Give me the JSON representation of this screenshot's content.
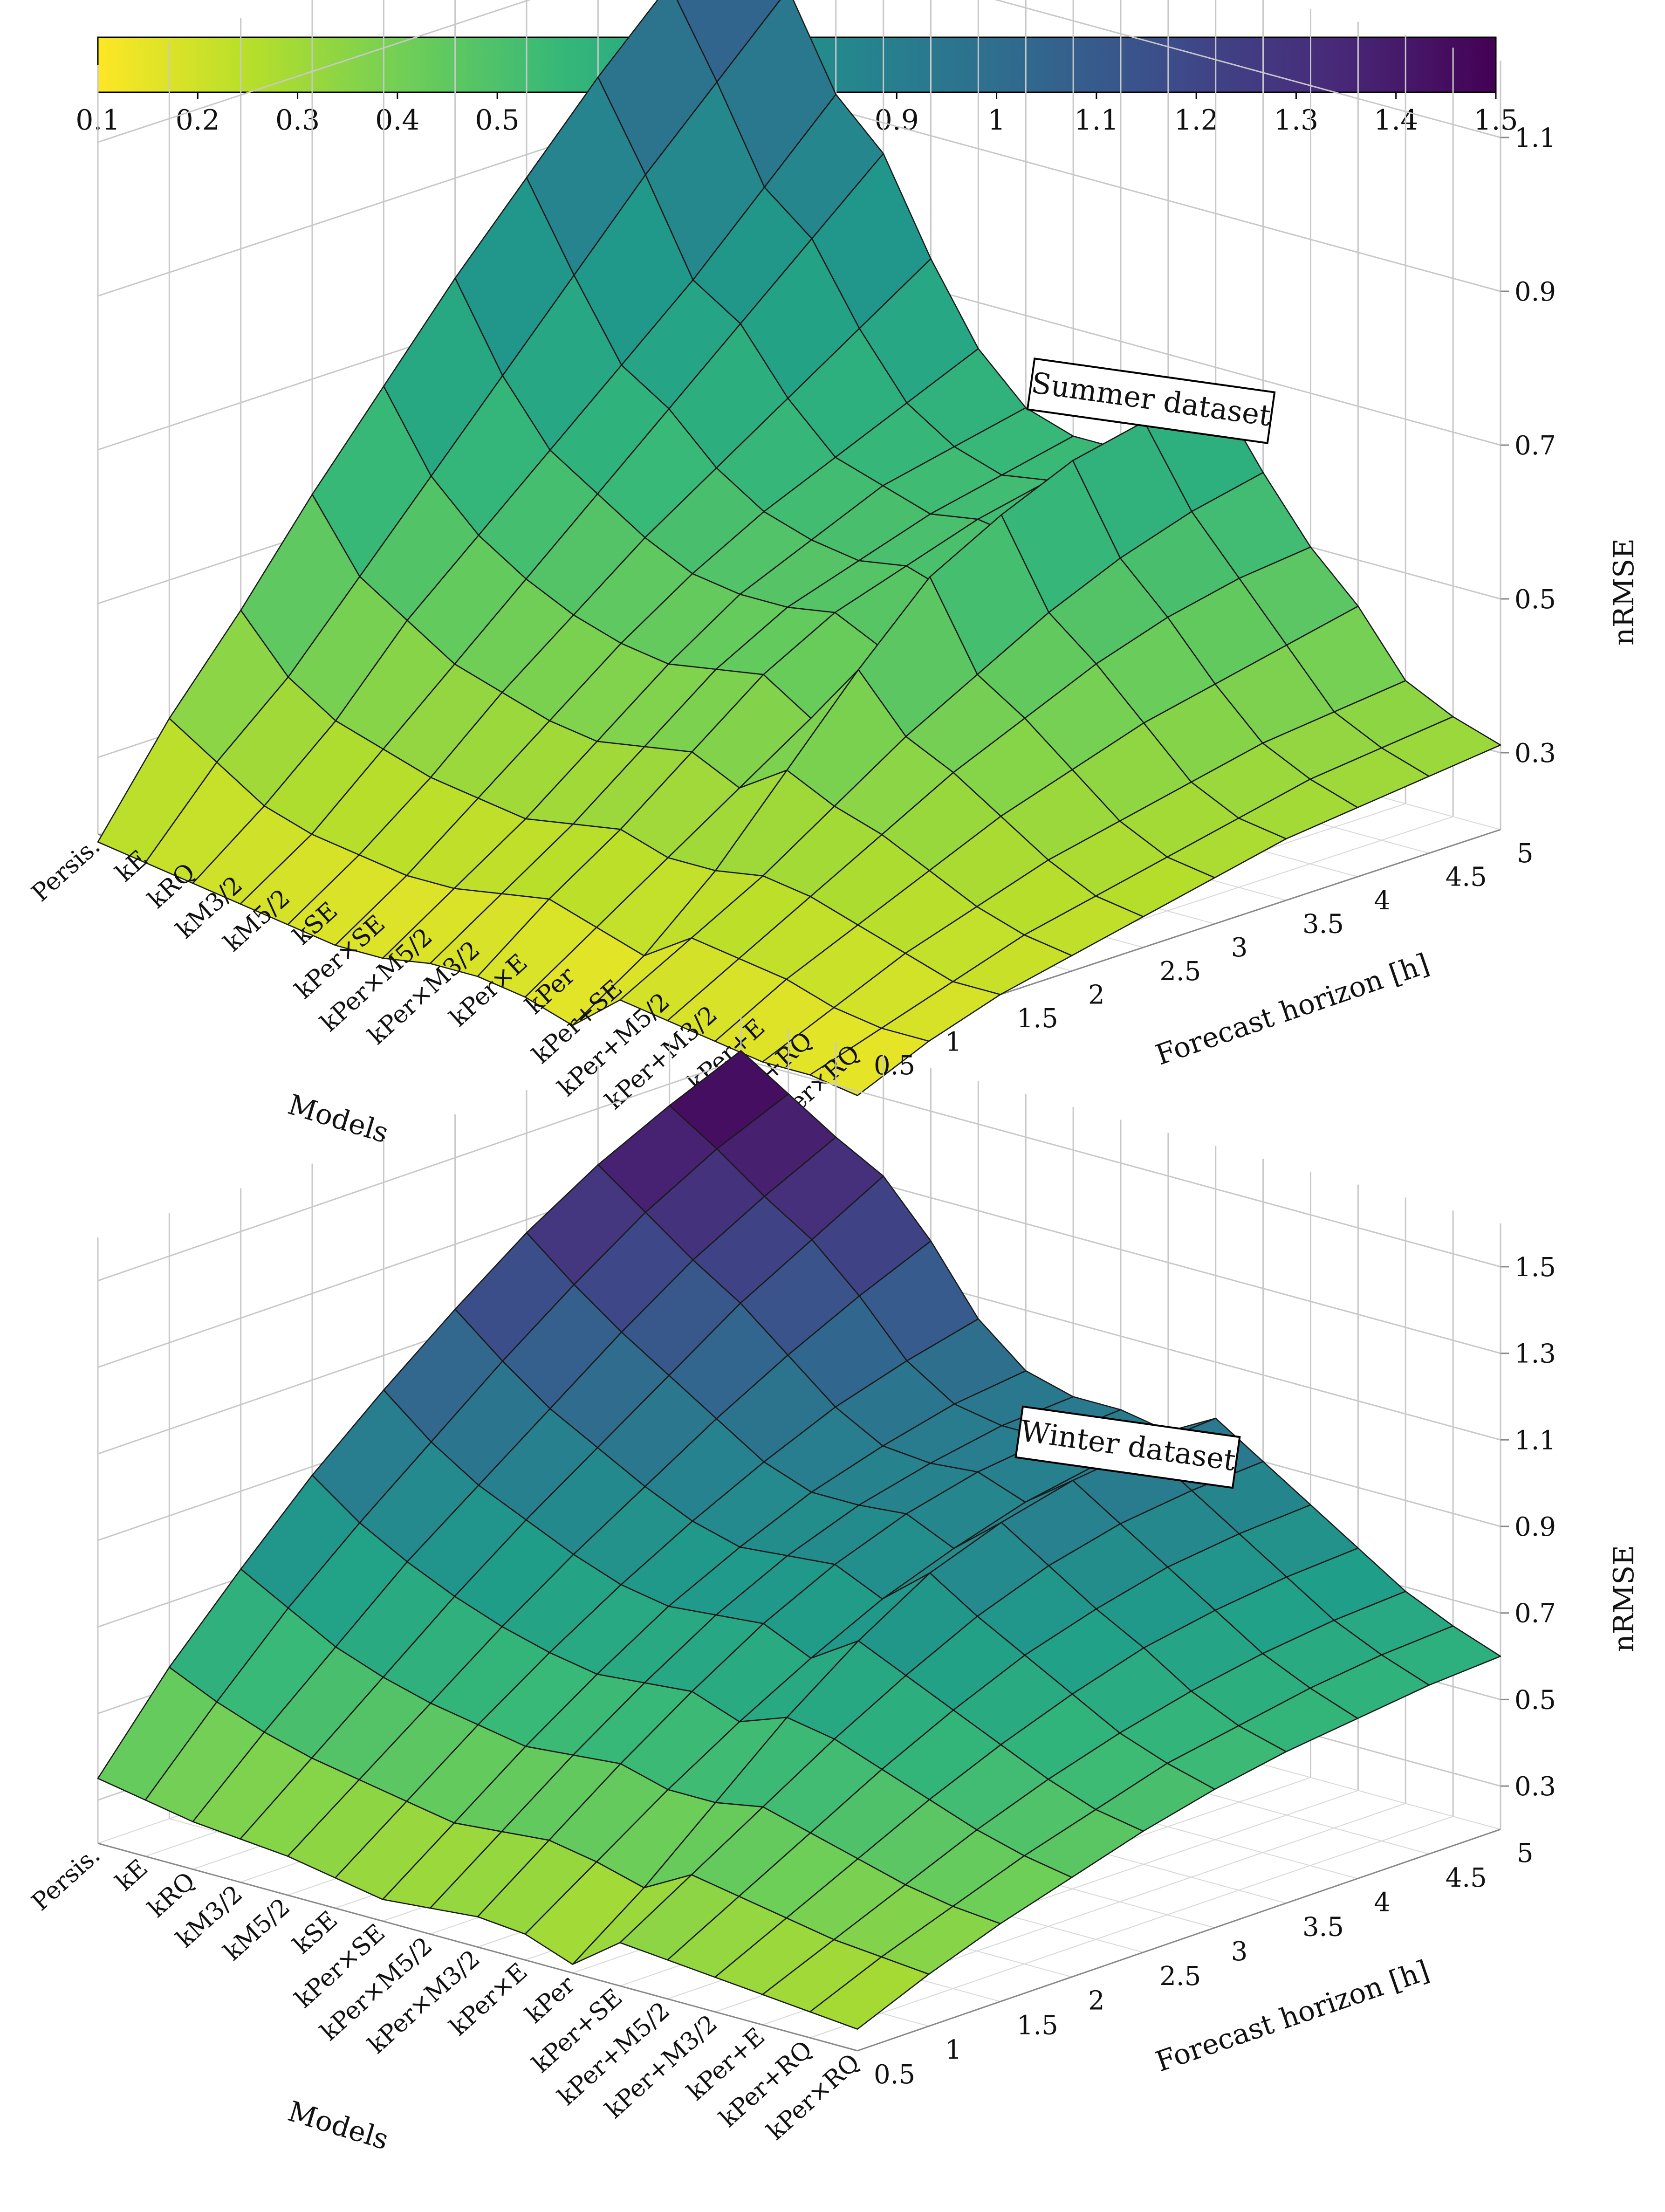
{
  "colorbar": {
    "min": 0.1,
    "max": 1.5,
    "ticks": [
      "0.1",
      "0.2",
      "0.3",
      "0.4",
      "0.5",
      "0.6",
      "0.7",
      "0.8",
      "0.9",
      "1",
      "1.1",
      "1.2",
      "1.3",
      "1.4",
      "1.5"
    ],
    "colormap": [
      "#fde725",
      "#b5de2b",
      "#6ece58",
      "#35b779",
      "#1f9e89",
      "#26828e",
      "#31688e",
      "#3e4989",
      "#482878",
      "#440154"
    ]
  },
  "chart_data": [
    {
      "type": "surface",
      "title": "Summer dataset",
      "xlabel": "Models",
      "ylabel": "Forecast horizon [h]",
      "zlabel": "nRMSE",
      "models": [
        "Persis.",
        "kE",
        "kRQ",
        "kM3/2",
        "kM5/2",
        "kSE",
        "kPer×SE",
        "kPer×M5/2",
        "kPer×M3/2",
        "kPer×E",
        "kPer",
        "kPer+SE",
        "kPer+M5/2",
        "kPer+M3/2",
        "kPer+E",
        "kPer+RQ",
        "kPer×RQ"
      ],
      "horizons": [
        0.5,
        1,
        1.5,
        2,
        2.5,
        3,
        3.5,
        4,
        4.5,
        5
      ],
      "horizon_ticks": [
        "0.5",
        "1",
        "1.5",
        "2",
        "2.5",
        "3",
        "3.5",
        "4",
        "4.5",
        "5"
      ],
      "zlim": [
        0.2,
        1.2
      ],
      "zticks": [
        "0.3",
        "0.5",
        "0.7",
        "0.9",
        "1.1"
      ],
      "values": [
        [
          0.19,
          0.32,
          0.43,
          0.55,
          0.66,
          0.77,
          0.87,
          0.97,
          1.06,
          1.15
        ],
        [
          0.18,
          0.28,
          0.36,
          0.46,
          0.56,
          0.66,
          0.76,
          0.86,
          0.95,
          1.04
        ],
        [
          0.17,
          0.24,
          0.32,
          0.42,
          0.5,
          0.58,
          0.66,
          0.74,
          0.83,
          0.92
        ],
        [
          0.16,
          0.22,
          0.3,
          0.38,
          0.46,
          0.54,
          0.62,
          0.7,
          0.78,
          0.86
        ],
        [
          0.15,
          0.21,
          0.28,
          0.36,
          0.43,
          0.5,
          0.56,
          0.62,
          0.68,
          0.74
        ],
        [
          0.14,
          0.2,
          0.27,
          0.34,
          0.41,
          0.47,
          0.52,
          0.56,
          0.6,
          0.64
        ],
        [
          0.14,
          0.2,
          0.26,
          0.33,
          0.4,
          0.46,
          0.5,
          0.54,
          0.56,
          0.58
        ],
        [
          0.15,
          0.21,
          0.27,
          0.34,
          0.41,
          0.46,
          0.49,
          0.52,
          0.54,
          0.56
        ],
        [
          0.15,
          0.22,
          0.28,
          0.35,
          0.42,
          0.47,
          0.5,
          0.53,
          0.55,
          0.56
        ],
        [
          0.14,
          0.2,
          0.26,
          0.32,
          0.38,
          0.44,
          0.48,
          0.52,
          0.55,
          0.57
        ],
        [
          0.12,
          0.18,
          0.26,
          0.36,
          0.46,
          0.55,
          0.6,
          0.64,
          0.66,
          0.67
        ],
        [
          0.17,
          0.22,
          0.27,
          0.33,
          0.39,
          0.44,
          0.49,
          0.53,
          0.56,
          0.58
        ],
        [
          0.16,
          0.21,
          0.26,
          0.31,
          0.36,
          0.4,
          0.44,
          0.47,
          0.49,
          0.5
        ],
        [
          0.15,
          0.2,
          0.24,
          0.28,
          0.32,
          0.35,
          0.38,
          0.4,
          0.42,
          0.44
        ],
        [
          0.14,
          0.18,
          0.22,
          0.25,
          0.28,
          0.3,
          0.32,
          0.34,
          0.35,
          0.36
        ],
        [
          0.14,
          0.17,
          0.2,
          0.23,
          0.25,
          0.27,
          0.29,
          0.31,
          0.32,
          0.33
        ],
        [
          0.13,
          0.17,
          0.2,
          0.22,
          0.24,
          0.26,
          0.28,
          0.29,
          0.3,
          0.31
        ]
      ]
    },
    {
      "type": "surface",
      "title": "Winter dataset",
      "xlabel": "Models",
      "ylabel": "Forecast horizon [h]",
      "zlabel": "nRMSE",
      "models": [
        "Persis.",
        "kE",
        "kRQ",
        "kM3/2",
        "kM5/2",
        "kSE",
        "kPer×SE",
        "kPer×M5/2",
        "kPer×M3/2",
        "kPer×E",
        "kPer",
        "kPer+SE",
        "kPer+M5/2",
        "kPer+M3/2",
        "kPer+E",
        "kPer+RQ",
        "kPer×RQ"
      ],
      "horizons": [
        0.5,
        1,
        1.5,
        2,
        2.5,
        3,
        3.5,
        4,
        4.5,
        5
      ],
      "horizon_ticks": [
        "0.5",
        "1",
        "1.5",
        "2",
        "2.5",
        "3",
        "3.5",
        "4",
        "4.5",
        "5"
      ],
      "zlim": [
        0.2,
        1.6
      ],
      "zticks": [
        "0.3",
        "0.5",
        "0.7",
        "0.9",
        "1.1",
        "1.3",
        "1.5"
      ],
      "values": [
        [
          0.35,
          0.55,
          0.72,
          0.88,
          1.02,
          1.15,
          1.27,
          1.37,
          1.45,
          1.52
        ],
        [
          0.33,
          0.5,
          0.66,
          0.8,
          0.93,
          1.06,
          1.18,
          1.29,
          1.38,
          1.45
        ],
        [
          0.31,
          0.46,
          0.6,
          0.74,
          0.86,
          0.98,
          1.1,
          1.21,
          1.3,
          1.38
        ],
        [
          0.3,
          0.43,
          0.56,
          0.69,
          0.81,
          0.92,
          1.03,
          1.14,
          1.23,
          1.32
        ],
        [
          0.29,
          0.41,
          0.53,
          0.65,
          0.76,
          0.86,
          0.96,
          1.05,
          1.13,
          1.2
        ],
        [
          0.27,
          0.39,
          0.51,
          0.62,
          0.72,
          0.81,
          0.89,
          0.96,
          1.01,
          1.05
        ],
        [
          0.25,
          0.37,
          0.49,
          0.6,
          0.7,
          0.78,
          0.85,
          0.9,
          0.94,
          0.96
        ],
        [
          0.26,
          0.38,
          0.5,
          0.61,
          0.71,
          0.79,
          0.85,
          0.89,
          0.92,
          0.93
        ],
        [
          0.27,
          0.39,
          0.51,
          0.62,
          0.72,
          0.8,
          0.86,
          0.9,
          0.92,
          0.93
        ],
        [
          0.26,
          0.37,
          0.48,
          0.58,
          0.67,
          0.75,
          0.81,
          0.86,
          0.89,
          0.91
        ],
        [
          0.22,
          0.34,
          0.48,
          0.62,
          0.74,
          0.84,
          0.9,
          0.94,
          0.96,
          0.97
        ],
        [
          0.3,
          0.4,
          0.5,
          0.6,
          0.69,
          0.77,
          0.83,
          0.87,
          0.89,
          0.9
        ],
        [
          0.29,
          0.38,
          0.47,
          0.56,
          0.64,
          0.71,
          0.76,
          0.8,
          0.82,
          0.83
        ],
        [
          0.28,
          0.36,
          0.44,
          0.52,
          0.59,
          0.65,
          0.7,
          0.73,
          0.75,
          0.76
        ],
        [
          0.27,
          0.34,
          0.41,
          0.48,
          0.54,
          0.59,
          0.63,
          0.66,
          0.68,
          0.69
        ],
        [
          0.26,
          0.33,
          0.39,
          0.45,
          0.5,
          0.55,
          0.58,
          0.61,
          0.63,
          0.64
        ],
        [
          0.25,
          0.32,
          0.38,
          0.43,
          0.48,
          0.52,
          0.55,
          0.57,
          0.59,
          0.6
        ]
      ]
    }
  ]
}
